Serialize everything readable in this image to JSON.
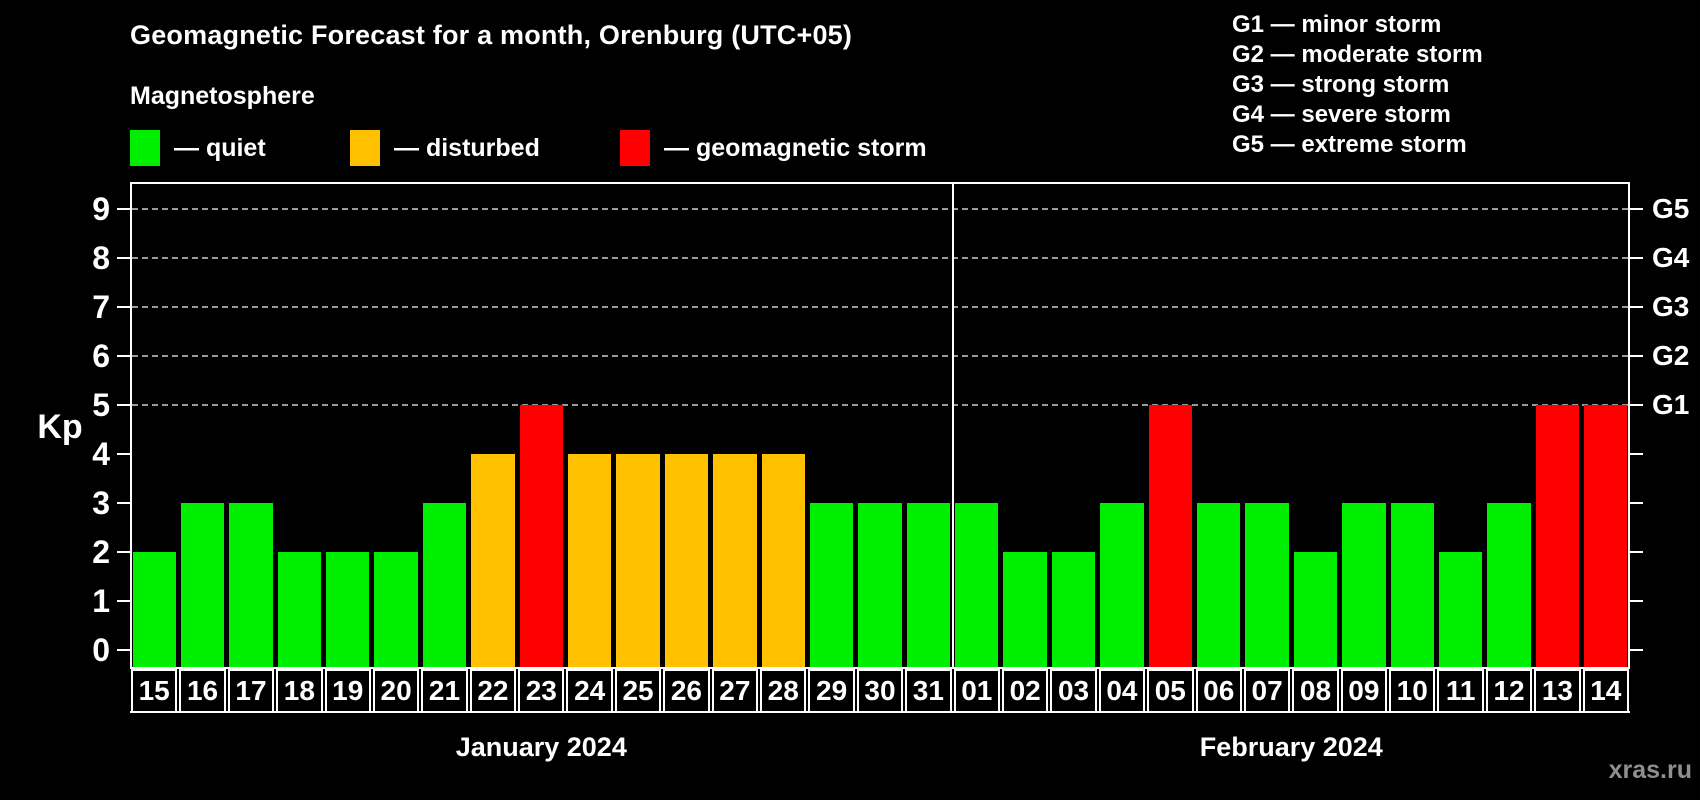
{
  "header": {
    "title": "Geomagnetic Forecast for a month, Orenburg (UTC+05)",
    "subtitle": "Magnetosphere"
  },
  "legend": {
    "items": [
      {
        "name": "quiet",
        "label": "— quiet",
        "color": "#00ee00"
      },
      {
        "name": "disturbed",
        "label": "— disturbed",
        "color": "#ffc000"
      },
      {
        "name": "storm",
        "label": "— geomagnetic storm",
        "color": "#ff0000"
      }
    ]
  },
  "g_scale_legend": {
    "lines": [
      "G1 — minor storm",
      "G2 — moderate storm",
      "G3 — strong storm",
      "G4 — severe storm",
      "G5 — extreme storm"
    ]
  },
  "watermark": "xras.ru",
  "chart_data": {
    "type": "bar",
    "title": "Geomagnetic Forecast for a month, Orenburg (UTC+05)",
    "ylabel": "Kp",
    "ylim": [
      0,
      9.5
    ],
    "yticks": [
      0,
      1,
      2,
      3,
      4,
      5,
      6,
      7,
      8,
      9
    ],
    "gridlines_at": [
      5,
      6,
      7,
      8,
      9
    ],
    "legend_position": "top-left",
    "right_axis": [
      {
        "kp": 5,
        "label": "G1"
      },
      {
        "kp": 6,
        "label": "G2"
      },
      {
        "kp": 7,
        "label": "G3"
      },
      {
        "kp": 8,
        "label": "G4"
      },
      {
        "kp": 9,
        "label": "G5"
      }
    ],
    "status_colors": {
      "quiet": "#00ee00",
      "disturbed": "#ffc000",
      "storm": "#ff0000"
    },
    "months": [
      {
        "label": "January 2024",
        "points": [
          {
            "day": "15",
            "kp": 2,
            "status": "quiet"
          },
          {
            "day": "16",
            "kp": 3,
            "status": "quiet"
          },
          {
            "day": "17",
            "kp": 3,
            "status": "quiet"
          },
          {
            "day": "18",
            "kp": 2,
            "status": "quiet"
          },
          {
            "day": "19",
            "kp": 2,
            "status": "quiet"
          },
          {
            "day": "20",
            "kp": 2,
            "status": "quiet"
          },
          {
            "day": "21",
            "kp": 3,
            "status": "quiet"
          },
          {
            "day": "22",
            "kp": 4,
            "status": "disturbed"
          },
          {
            "day": "23",
            "kp": 5,
            "status": "storm"
          },
          {
            "day": "24",
            "kp": 4,
            "status": "disturbed"
          },
          {
            "day": "25",
            "kp": 4,
            "status": "disturbed"
          },
          {
            "day": "26",
            "kp": 4,
            "status": "disturbed"
          },
          {
            "day": "27",
            "kp": 4,
            "status": "disturbed"
          },
          {
            "day": "28",
            "kp": 4,
            "status": "disturbed"
          },
          {
            "day": "29",
            "kp": 3,
            "status": "quiet"
          },
          {
            "day": "30",
            "kp": 3,
            "status": "quiet"
          },
          {
            "day": "31",
            "kp": 3,
            "status": "quiet"
          }
        ]
      },
      {
        "label": "February 2024",
        "points": [
          {
            "day": "01",
            "kp": 3,
            "status": "quiet"
          },
          {
            "day": "02",
            "kp": 2,
            "status": "quiet"
          },
          {
            "day": "03",
            "kp": 2,
            "status": "quiet"
          },
          {
            "day": "04",
            "kp": 3,
            "status": "quiet"
          },
          {
            "day": "05",
            "kp": 5,
            "status": "storm"
          },
          {
            "day": "06",
            "kp": 3,
            "status": "quiet"
          },
          {
            "day": "07",
            "kp": 3,
            "status": "quiet"
          },
          {
            "day": "08",
            "kp": 2,
            "status": "quiet"
          },
          {
            "day": "09",
            "kp": 3,
            "status": "quiet"
          },
          {
            "day": "10",
            "kp": 3,
            "status": "quiet"
          },
          {
            "day": "11",
            "kp": 2,
            "status": "quiet"
          },
          {
            "day": "12",
            "kp": 3,
            "status": "quiet"
          },
          {
            "day": "13",
            "kp": 5,
            "status": "storm"
          },
          {
            "day": "14",
            "kp": 5,
            "status": "storm"
          }
        ]
      }
    ]
  }
}
